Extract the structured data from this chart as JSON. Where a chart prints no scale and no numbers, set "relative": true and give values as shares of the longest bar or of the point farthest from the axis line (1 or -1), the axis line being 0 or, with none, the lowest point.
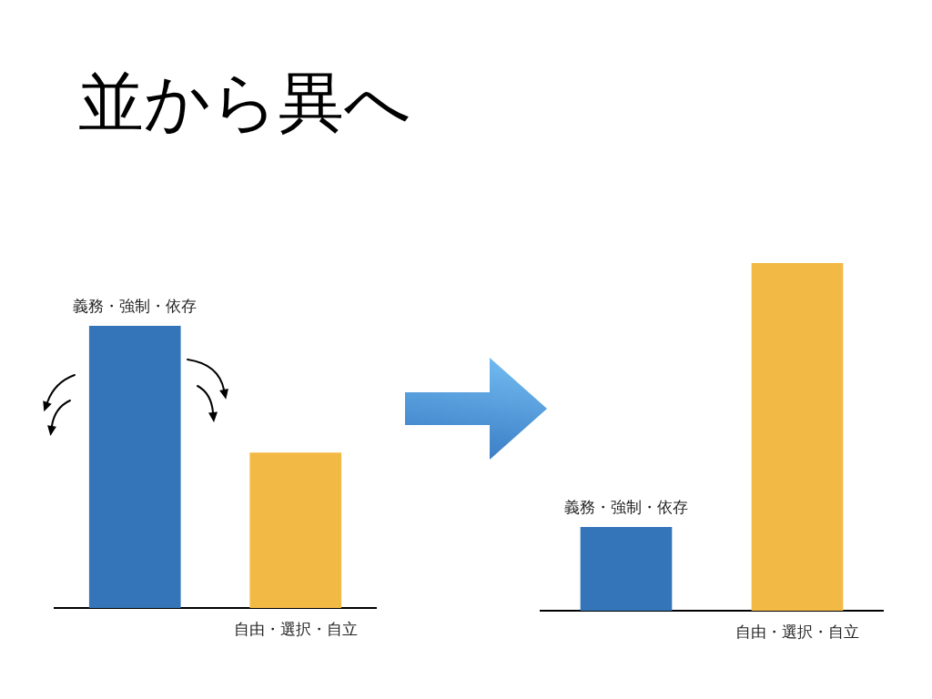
{
  "chart_data": [
    {
      "type": "bar",
      "title": "並から異へ",
      "categories": [
        "義務・強制・依存",
        "自由・選択・自立"
      ],
      "values": [
        1,
        0.55
      ],
      "colors": [
        "#3474b8",
        "#f2ba45"
      ],
      "relative": true
    },
    {
      "type": "bar",
      "categories": [
        "義務・強制・依存",
        "自由・選択・自立"
      ],
      "values": [
        0.24,
        1
      ],
      "colors": [
        "#3474b8",
        "#f2ba45"
      ],
      "relative": true
    }
  ]
}
